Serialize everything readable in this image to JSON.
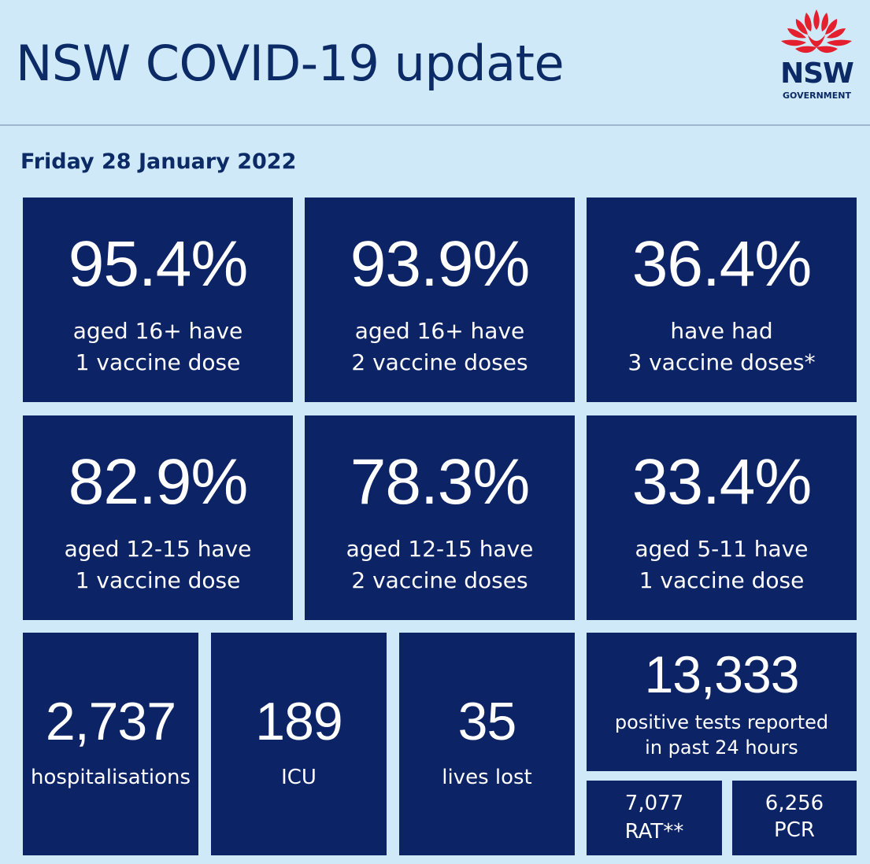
{
  "header": {
    "title": "NSW COVID-19 update",
    "logo_text": "NSW",
    "logo_subtext": "GOVERNMENT"
  },
  "date": "Friday 28 January 2022",
  "vaccination": [
    {
      "value": "95.4%",
      "line1": "aged 16+ have",
      "line2": "1 vaccine dose"
    },
    {
      "value": "93.9%",
      "line1": "aged 16+ have",
      "line2": "2 vaccine doses"
    },
    {
      "value": "36.4%",
      "line1": "have had",
      "line2": "3 vaccine doses*"
    },
    {
      "value": "82.9%",
      "line1": "aged 12-15 have",
      "line2": "1 vaccine dose"
    },
    {
      "value": "78.3%",
      "line1": "aged 12-15 have",
      "line2": "2 vaccine doses"
    },
    {
      "value": "33.4%",
      "line1": "aged 5-11 have",
      "line2": "1 vaccine dose"
    }
  ],
  "hospital": [
    {
      "value": "2,737",
      "label": "hospitalisations"
    },
    {
      "value": "189",
      "label": "ICU"
    },
    {
      "value": "35",
      "label": "lives lost"
    }
  ],
  "positive_tests": {
    "value": "13,333",
    "line1": "positive tests reported",
    "line2": "in past 24 hours"
  },
  "test_breakdown": [
    {
      "value": "7,077",
      "label": "RAT**"
    },
    {
      "value": "6,256",
      "label": "PCR"
    }
  ],
  "colors": {
    "background": "#cfe9f9",
    "tile": "#0c2366",
    "title_text": "#0b2a66",
    "waratah_red": "#e4202e"
  }
}
